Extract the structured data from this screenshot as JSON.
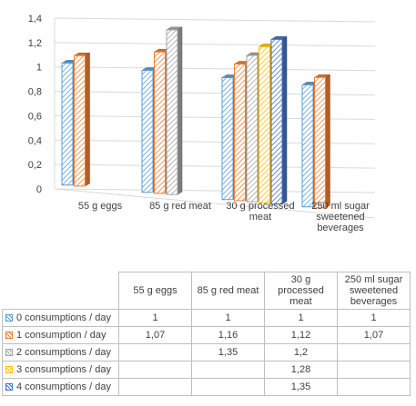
{
  "chart_data": {
    "type": "bar",
    "title": "",
    "xlabel": "",
    "ylabel": "",
    "ylim": [
      0,
      1.4
    ],
    "yticks": [
      "0",
      "0,2",
      "0,4",
      "0,6",
      "0,8",
      "1",
      "1,2",
      "1,4"
    ],
    "grid": true,
    "categories": [
      "55 g eggs",
      "85 g red meat",
      "30 g processed meat",
      "250 ml sugar sweetened beverages"
    ],
    "series": [
      {
        "name": "0 consumptions / day",
        "color": "#5b9bd5",
        "values": [
          1,
          1,
          1,
          1
        ],
        "labels": [
          "1",
          "1",
          "1",
          "1"
        ]
      },
      {
        "name": "1 consumption  / day",
        "color": "#ed7d31",
        "values": [
          1.07,
          1.16,
          1.12,
          1.07
        ],
        "labels": [
          "1,07",
          "1,16",
          "1,12",
          "1,07"
        ]
      },
      {
        "name": "2 consumptions / day",
        "color": "#a5a5a5",
        "values": [
          null,
          1.35,
          1.2,
          null
        ],
        "labels": [
          "",
          "1,35",
          "1,2",
          ""
        ]
      },
      {
        "name": "3 consumptions / day",
        "color": "#ffc000",
        "values": [
          null,
          null,
          1.28,
          null
        ],
        "labels": [
          "",
          "",
          "1,28",
          ""
        ]
      },
      {
        "name": "4 consumptions / day",
        "color": "#4472c4",
        "values": [
          null,
          null,
          1.35,
          null
        ],
        "labels": [
          "",
          "",
          "1,35",
          ""
        ]
      }
    ]
  }
}
